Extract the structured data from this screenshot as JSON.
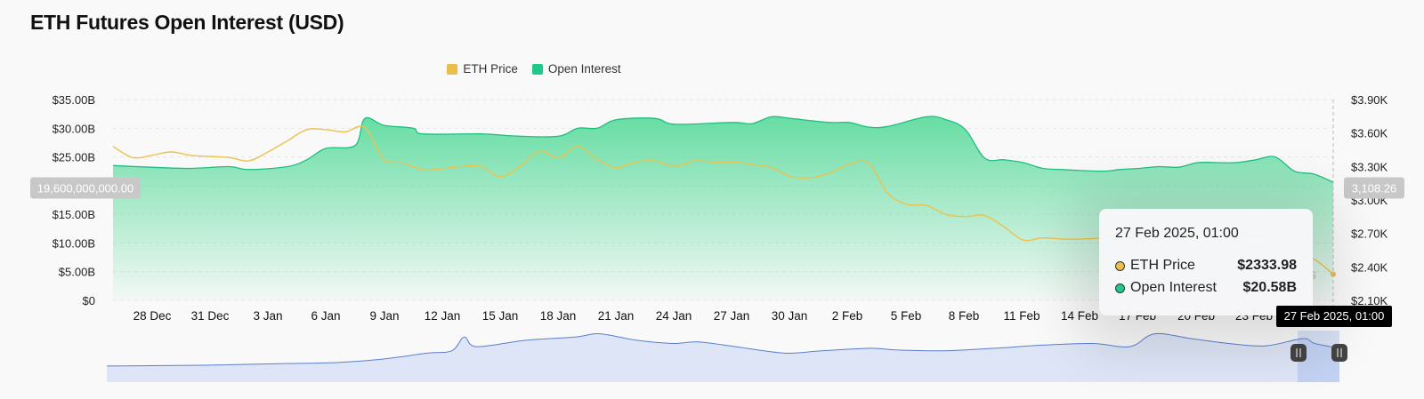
{
  "page": {
    "title": "ETH Futures Open Interest (USD)"
  },
  "legend": [
    {
      "label": "ETH Price",
      "color": "#e9bf4a"
    },
    {
      "label": "Open Interest",
      "color": "#1fc98a"
    }
  ],
  "crosshair": {
    "left_value": "19,600,000,000.00",
    "right_value": "3,108.26",
    "x_label": "27 Feb 2025, 01:00"
  },
  "tooltip": {
    "date": "27 Feb 2025, 01:00",
    "rows": [
      {
        "label": "ETH Price",
        "value": "$2333.98",
        "color": "#e9bf4a"
      },
      {
        "label": "Open Interest",
        "value": "$20.58B",
        "color": "#1fc98a"
      }
    ]
  },
  "watermark": "ss",
  "navigator": {
    "fill": "#dde5f6",
    "line": "#5a7fcf"
  },
  "chart_data": {
    "type": "area",
    "x_ticks": [
      "28 Dec",
      "31 Dec",
      "3 Jan",
      "6 Jan",
      "9 Jan",
      "12 Jan",
      "15 Jan",
      "18 Jan",
      "21 Jan",
      "24 Jan",
      "27 Jan",
      "30 Jan",
      "2 Feb",
      "5 Feb",
      "8 Feb",
      "11 Feb",
      "14 Feb",
      "17 Feb",
      "20 Feb",
      "23 Feb",
      "27 Feb 2025, 01:00"
    ],
    "y_left_ticks": [
      "$0",
      "$5.00B",
      "$10.00B",
      "$15.00B",
      "$20.00B",
      "$25.00B",
      "$30.00B",
      "$35.00B"
    ],
    "y_right_ticks": [
      "$2.10K",
      "$2.40K",
      "$2.70K",
      "$3.00K",
      "$3.30K",
      "$3.60K",
      "$3.90K"
    ],
    "y_left_range": [
      0,
      35
    ],
    "y_right_range": [
      2100,
      3900
    ],
    "x_range": [
      25,
      88
    ],
    "series": [
      {
        "name": "Open Interest",
        "unit": "USD billions",
        "axis": "left",
        "points": [
          [
            25,
            23.5
          ],
          [
            27,
            23.2
          ],
          [
            29,
            23.0
          ],
          [
            31,
            23.3
          ],
          [
            32,
            22.8
          ],
          [
            34,
            23.3
          ],
          [
            35,
            24.5
          ],
          [
            36,
            26.5
          ],
          [
            37.5,
            27.0
          ],
          [
            38,
            31.7
          ],
          [
            39,
            30.5
          ],
          [
            40.5,
            30.0
          ],
          [
            41,
            29.0
          ],
          [
            44,
            29.0
          ],
          [
            46,
            28.6
          ],
          [
            48,
            28.6
          ],
          [
            49,
            30.0
          ],
          [
            50,
            30.0
          ],
          [
            51,
            31.5
          ],
          [
            53,
            31.7
          ],
          [
            54,
            30.7
          ],
          [
            57,
            31.0
          ],
          [
            58,
            30.8
          ],
          [
            59,
            32.0
          ],
          [
            60,
            31.7
          ],
          [
            62,
            31.0
          ],
          [
            63,
            31.0
          ],
          [
            64,
            30.2
          ],
          [
            65,
            30.3
          ],
          [
            67,
            32.0
          ],
          [
            68,
            31.5
          ],
          [
            69,
            29.8
          ],
          [
            70,
            24.8
          ],
          [
            71,
            24.5
          ],
          [
            72,
            24.0
          ],
          [
            73,
            23.0
          ],
          [
            74,
            22.8
          ],
          [
            76,
            22.5
          ],
          [
            77,
            22.8
          ],
          [
            78,
            23.0
          ],
          [
            79,
            23.3
          ],
          [
            80,
            23.2
          ],
          [
            81,
            24.0
          ],
          [
            82,
            24.0
          ],
          [
            83,
            24.0
          ],
          [
            84,
            24.5
          ],
          [
            85,
            25.0
          ],
          [
            86,
            22.5
          ],
          [
            87,
            22.0
          ],
          [
            88,
            20.58
          ]
        ]
      },
      {
        "name": "ETH Price",
        "unit": "USD",
        "axis": "right",
        "points": [
          [
            25,
            3480
          ],
          [
            26,
            3380
          ],
          [
            27,
            3400
          ],
          [
            28,
            3430
          ],
          [
            29,
            3400
          ],
          [
            30,
            3390
          ],
          [
            31,
            3380
          ],
          [
            32,
            3350
          ],
          [
            33,
            3430
          ],
          [
            34,
            3530
          ],
          [
            35,
            3630
          ],
          [
            36,
            3630
          ],
          [
            37,
            3610
          ],
          [
            38,
            3650
          ],
          [
            39,
            3360
          ],
          [
            40,
            3330
          ],
          [
            41,
            3270
          ],
          [
            42,
            3280
          ],
          [
            43,
            3300
          ],
          [
            44,
            3300
          ],
          [
            45,
            3210
          ],
          [
            46,
            3300
          ],
          [
            47,
            3440
          ],
          [
            48,
            3380
          ],
          [
            49,
            3480
          ],
          [
            50,
            3360
          ],
          [
            51,
            3290
          ],
          [
            52,
            3340
          ],
          [
            53,
            3350
          ],
          [
            54,
            3300
          ],
          [
            55,
            3350
          ],
          [
            56,
            3340
          ],
          [
            57,
            3340
          ],
          [
            58,
            3320
          ],
          [
            59,
            3290
          ],
          [
            60,
            3210
          ],
          [
            61,
            3200
          ],
          [
            62,
            3240
          ],
          [
            63,
            3320
          ],
          [
            64,
            3330
          ],
          [
            65,
            3060
          ],
          [
            66,
            2960
          ],
          [
            67,
            2950
          ],
          [
            68,
            2870
          ],
          [
            69,
            2850
          ],
          [
            70,
            2860
          ],
          [
            71,
            2760
          ],
          [
            72,
            2640
          ],
          [
            73,
            2660
          ],
          [
            74,
            2650
          ],
          [
            75,
            2650
          ],
          [
            76,
            2660
          ],
          [
            77,
            2710
          ],
          [
            78,
            2690
          ],
          [
            79,
            2730
          ],
          [
            80,
            2700
          ],
          [
            81,
            2700
          ],
          [
            82,
            2660
          ],
          [
            83,
            2700
          ],
          [
            84,
            2680
          ],
          [
            85,
            2680
          ],
          [
            86,
            2520
          ],
          [
            87,
            2470
          ],
          [
            88,
            2333.98
          ]
        ]
      }
    ],
    "navigator_series": {
      "name": "Open Interest",
      "points": [
        [
          0,
          10.0
        ],
        [
          8,
          10.5
        ],
        [
          14,
          11.5
        ],
        [
          18,
          12.0
        ],
        [
          22,
          14.0
        ],
        [
          26,
          18.0
        ],
        [
          28,
          19.5
        ],
        [
          29,
          28.0
        ],
        [
          30,
          22.0
        ],
        [
          34,
          26.0
        ],
        [
          38,
          28.0
        ],
        [
          40,
          30.0
        ],
        [
          43,
          26.0
        ],
        [
          46,
          24.0
        ],
        [
          48,
          25.0
        ],
        [
          51,
          22.0
        ],
        [
          55,
          18.0
        ],
        [
          58,
          19.5
        ],
        [
          62,
          21.0
        ],
        [
          64,
          20.0
        ],
        [
          68,
          19.5
        ],
        [
          72,
          21.0
        ],
        [
          76,
          23.0
        ],
        [
          80,
          24.0
        ],
        [
          83,
          22.0
        ],
        [
          85,
          30.0
        ],
        [
          88,
          27.0
        ],
        [
          91,
          24.0
        ],
        [
          94,
          22.5
        ],
        [
          97,
          27.0
        ],
        [
          98,
          24.0
        ],
        [
          100,
          21.0
        ]
      ]
    }
  }
}
